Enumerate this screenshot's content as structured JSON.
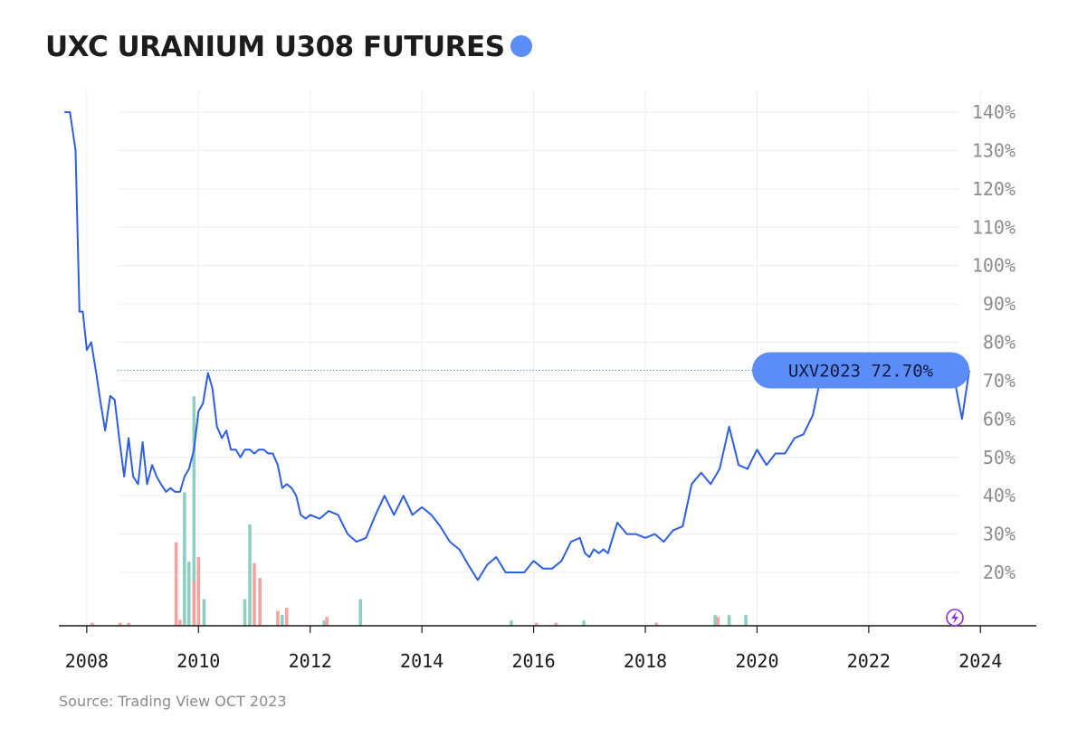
{
  "header": {
    "title": "UXC URANIUM U308 FUTURES",
    "title_dot_color": "#5b8cf8"
  },
  "footer": {
    "source": "Source: Trading View OCT 2023"
  },
  "colors": {
    "line": "#2f5fe0",
    "up_volume": "#8ecfc2",
    "down_volume": "#f3a3a0",
    "callout_bg": "#5b8cf8",
    "gridline": "#eeeeee",
    "axis": "#1a1a1a"
  },
  "chart_data": {
    "type": "line",
    "title": "UXC URANIUM U308 FUTURES",
    "xlabel": "",
    "ylabel": "",
    "xlim": [
      2007.5,
      2025.0
    ],
    "ylim": [
      6,
      142
    ],
    "y_ticks": [
      20,
      30,
      40,
      50,
      60,
      70,
      80,
      90,
      100,
      110,
      120,
      130,
      140
    ],
    "y_tick_labels": [
      "20%",
      "30%",
      "40%",
      "50%",
      "60%",
      "70%",
      "80%",
      "90%",
      "100%",
      "110%",
      "120%",
      "130%",
      "140%"
    ],
    "x_ticks": [
      2008,
      2010,
      2012,
      2014,
      2016,
      2018,
      2020,
      2022,
      2024
    ],
    "x_tick_labels": [
      "2008",
      "2010",
      "2012",
      "2014",
      "2016",
      "2018",
      "2020",
      "2022",
      "2024"
    ],
    "grid": true,
    "y_axis_position": "right",
    "series": [
      {
        "name": "UXV2023",
        "x": [
          2007.6,
          2007.7,
          2007.8,
          2007.87,
          2007.93,
          2008.0,
          2008.08,
          2008.17,
          2008.25,
          2008.33,
          2008.42,
          2008.5,
          2008.58,
          2008.67,
          2008.75,
          2008.83,
          2008.92,
          2009.0,
          2009.08,
          2009.17,
          2009.25,
          2009.33,
          2009.42,
          2009.5,
          2009.58,
          2009.67,
          2009.75,
          2009.83,
          2009.92,
          2010.0,
          2010.08,
          2010.17,
          2010.25,
          2010.33,
          2010.42,
          2010.5,
          2010.58,
          2010.67,
          2010.75,
          2010.83,
          2010.92,
          2011.0,
          2011.08,
          2011.17,
          2011.25,
          2011.33,
          2011.42,
          2011.5,
          2011.58,
          2011.67,
          2011.75,
          2011.83,
          2011.92,
          2012.0,
          2012.17,
          2012.33,
          2012.5,
          2012.67,
          2012.83,
          2013.0,
          2013.17,
          2013.33,
          2013.5,
          2013.67,
          2013.83,
          2014.0,
          2014.17,
          2014.33,
          2014.5,
          2014.67,
          2014.83,
          2015.0,
          2015.17,
          2015.33,
          2015.5,
          2015.67,
          2015.83,
          2016.0,
          2016.17,
          2016.33,
          2016.5,
          2016.67,
          2016.83,
          2016.92,
          2017.0,
          2017.08,
          2017.17,
          2017.25,
          2017.33,
          2017.5,
          2017.67,
          2017.83,
          2018.0,
          2018.17,
          2018.33,
          2018.5,
          2018.67,
          2018.83,
          2019.0,
          2019.17,
          2019.33,
          2019.5,
          2019.67,
          2019.83,
          2020.0,
          2020.17,
          2020.33,
          2020.5,
          2020.67,
          2020.83,
          2021.0,
          2021.17,
          2021.33,
          2021.5,
          2021.67,
          2021.83,
          2022.0,
          2022.17,
          2022.25,
          2022.42,
          2022.58,
          2022.75,
          2022.92,
          2023.0,
          2023.17,
          2023.33,
          2023.5,
          2023.67,
          2023.75,
          2023.8
        ],
        "y": [
          140,
          140,
          130,
          88,
          88,
          78,
          80,
          72,
          64,
          57,
          66,
          65,
          55,
          45,
          55,
          45,
          43,
          54,
          43,
          48,
          45,
          43,
          41,
          42,
          41,
          41,
          45,
          47,
          52,
          62,
          64,
          72,
          68,
          58,
          55,
          57,
          52,
          52,
          50,
          52,
          52,
          51,
          52,
          52,
          51,
          51,
          48,
          42,
          43,
          42,
          40,
          35,
          34,
          35,
          34,
          36,
          35,
          30,
          28,
          29,
          35,
          40,
          35,
          40,
          35,
          37,
          35,
          32,
          28,
          26,
          22,
          18,
          22,
          24,
          20,
          20,
          20,
          23,
          21,
          21,
          23,
          28,
          29,
          25,
          24,
          26,
          25,
          26,
          25,
          33,
          30,
          30,
          29,
          30,
          28,
          31,
          32,
          43,
          46,
          43,
          47,
          58,
          48,
          47,
          52,
          48,
          51,
          51,
          55,
          56,
          61,
          73,
          73,
          73,
          73,
          73,
          73,
          73,
          73,
          73,
          73,
          73,
          73,
          73,
          73,
          73,
          73,
          73,
          73,
          72.7
        ]
      }
    ],
    "volume": {
      "up": {
        "x": [
          2009.75,
          2009.83,
          2009.92,
          2010.1,
          2010.83,
          2010.92,
          2011.5,
          2012.25,
          2012.9,
          2015.6,
          2016.9,
          2019.25,
          2019.5,
          2019.8
        ],
        "values": [
          25,
          12,
          43,
          5,
          5,
          19,
          2,
          1,
          5,
          1,
          1,
          2,
          2,
          2
        ]
      },
      "down": {
        "x": [
          2008.1,
          2008.6,
          2008.75,
          2009.6,
          2009.67,
          2009.92,
          2010.0,
          2011.0,
          2011.1,
          2011.42,
          2011.58,
          2012.3,
          2016.05,
          2016.4,
          2018.2,
          2019.3
        ],
        "values": [
          1,
          1,
          1,
          28,
          2,
          15,
          23,
          21,
          16,
          5,
          6,
          3,
          1,
          1,
          1,
          3
        ]
      }
    },
    "callout": {
      "label": "UXV2023 72.70%",
      "value": 72.7
    }
  }
}
